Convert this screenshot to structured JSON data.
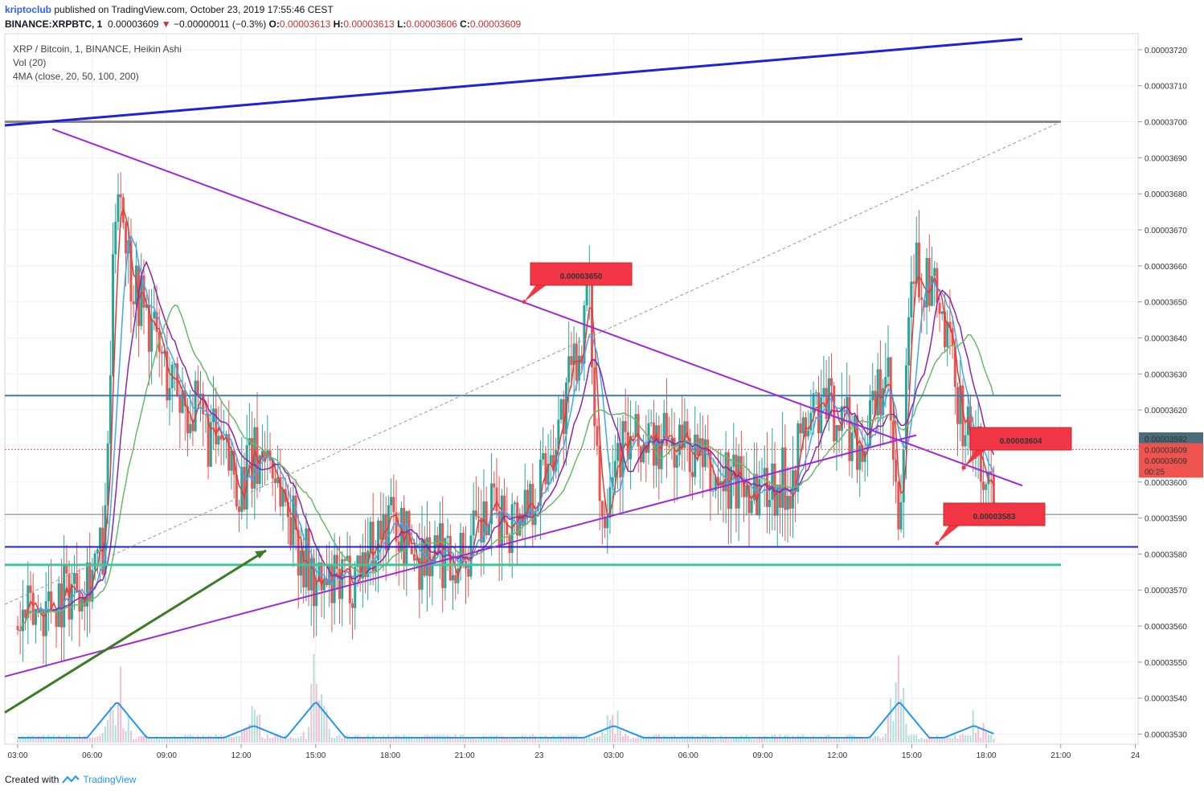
{
  "header": {
    "publisher": "kriptoclub",
    "published_text": "published on TradingView.com, October 23, 2019 17:55:46 CEST",
    "symbol": "BINANCE:XRPBTC, 1",
    "last": "0.00003609",
    "change": "−0.00000011 (−0.3%)",
    "o_label": "O:",
    "o_value": "0.00003613",
    "h_label": "H:",
    "h_value": "0.00003613",
    "l_label": "L:",
    "l_value": "0.00003606",
    "c_label": "C:",
    "c_value": "0.00003609"
  },
  "legend": {
    "line1": "XRP / Bitcoin, 1, BINANCE, Heikin Ashi",
    "line2": "Vol (20)",
    "line3": "4MA (close, 20, 50, 100, 200)"
  },
  "footer": {
    "created_with": "Created with",
    "brand": "TradingView"
  },
  "colors": {
    "up": "#26a69a",
    "down": "#ef5350",
    "ma20": "#e53935",
    "ma50": "#42a5f5",
    "ma100": "#8e24aa",
    "ma200": "#66bb6a",
    "trend_purple": "#9c27e0",
    "blue_line": "#1e22d9",
    "steel_line": "#3a7bbf",
    "green_line": "#3cc79a",
    "grey_line": "#888888",
    "green_arrow": "#3b7d23",
    "label_red": "#f23645"
  },
  "chart_data": {
    "type": "candlestick",
    "title": "XRP / Bitcoin, 1, BINANCE, Heikin Ashi",
    "y_ticks": [
      "0.00003720",
      "0.00003710",
      "0.00003700",
      "0.00003690",
      "0.00003680",
      "0.00003670",
      "0.00003660",
      "0.00003650",
      "0.00003640",
      "0.00003630",
      "0.00003620",
      "0.00003610",
      "0.00003600",
      "0.00003590",
      "0.00003580",
      "0.00003570",
      "0.00003560",
      "0.00003550",
      "0.00003540",
      "0.00003530"
    ],
    "ylim": [
      3.52722e-05,
      3.72444e-05
    ],
    "x_ticks": [
      "03:00",
      "06:00",
      "09:00",
      "12:00",
      "15:00",
      "18:00",
      "21:00",
      "23",
      "03:00",
      "06:00",
      "09:00",
      "12:00",
      "15:00",
      "18:00",
      "21:00",
      "24"
    ],
    "price_labels": {
      "current_high": "0.00003592",
      "current_a": "0.00003609",
      "current_b": "0.00003609",
      "countdown": "00:25"
    },
    "callouts": [
      "0.00003650",
      "0.00003604",
      "0.00003583"
    ],
    "horizontal_levels": [
      3.7e-05,
      3.624e-05,
      3.591e-05,
      3.582e-05,
      3.577e-05
    ],
    "price_path": [
      [
        0,
        3.56e-05
      ],
      [
        2,
        3.57e-05
      ],
      [
        3.5,
        3.58e-05
      ],
      [
        4,
        3.69e-05
      ],
      [
        4.5,
        3.66e-05
      ],
      [
        6,
        3.63e-05
      ],
      [
        7,
        3.62e-05
      ],
      [
        8,
        3.61e-05
      ],
      [
        9,
        3.6e-05
      ],
      [
        10,
        3.61e-05
      ],
      [
        11,
        3.59e-05
      ],
      [
        12,
        3.57e-05
      ],
      [
        13,
        3.57e-05
      ],
      [
        14,
        3.58e-05
      ],
      [
        15,
        3.59e-05
      ],
      [
        16,
        3.58e-05
      ],
      [
        17,
        3.58e-05
      ],
      [
        18,
        3.58e-05
      ],
      [
        19,
        3.59e-05
      ],
      [
        20,
        3.59e-05
      ],
      [
        21,
        3.6e-05
      ],
      [
        22,
        3.62e-05
      ],
      [
        23,
        3.65e-05
      ],
      [
        23.5,
        3.59e-05
      ],
      [
        24,
        3.61e-05
      ],
      [
        25,
        3.61e-05
      ],
      [
        26,
        3.61e-05
      ],
      [
        27,
        3.61e-05
      ],
      [
        28,
        3.6e-05
      ],
      [
        29,
        3.6e-05
      ],
      [
        30,
        3.6e-05
      ],
      [
        31,
        3.6e-05
      ],
      [
        32,
        3.62e-05
      ],
      [
        33,
        3.62e-05
      ],
      [
        34,
        3.61e-05
      ],
      [
        35,
        3.63e-05
      ],
      [
        35.5,
        3.58e-05
      ],
      [
        36,
        3.66e-05
      ],
      [
        37,
        3.65e-05
      ],
      [
        38,
        3.62e-05
      ],
      [
        39,
        3.6e-05
      ],
      [
        39.3,
        3.6e-05
      ]
    ],
    "volume_spikes": [
      {
        "x": 4,
        "v": "high"
      },
      {
        "x": 9.5,
        "v": "mid"
      },
      {
        "x": 12,
        "v": "high"
      },
      {
        "x": 24,
        "v": "mid"
      },
      {
        "x": 35.5,
        "v": "high"
      },
      {
        "x": 38.5,
        "v": "mid"
      }
    ]
  }
}
